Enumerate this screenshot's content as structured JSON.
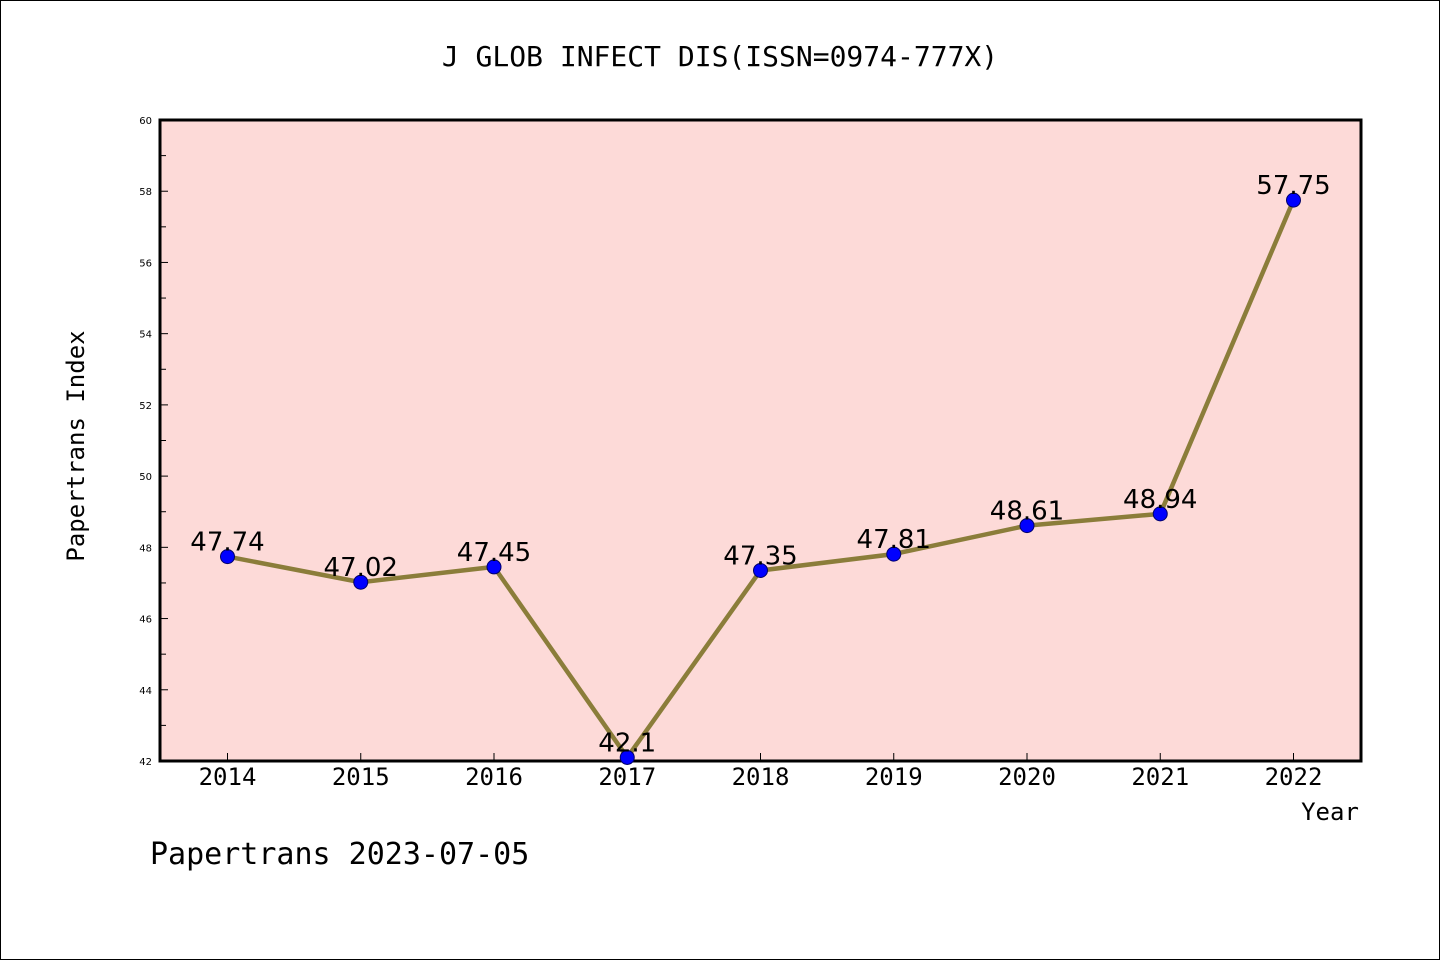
{
  "chart_data": {
    "type": "line",
    "title": "J GLOB INFECT DIS(ISSN=0974-777X)",
    "xlabel": "Year",
    "ylabel": "Papertrans Index",
    "categories": [
      "2014",
      "2015",
      "2016",
      "2017",
      "2018",
      "2019",
      "2020",
      "2021",
      "2022"
    ],
    "series": [
      {
        "values": [
          47.74,
          47.02,
          47.45,
          42.1,
          47.35,
          47.81,
          48.61,
          48.94,
          57.75
        ],
        "labels": [
          "47.74",
          "47.02",
          "47.45",
          "42.1",
          "47.35",
          "47.81",
          "48.61",
          "48.94",
          "57.75"
        ]
      }
    ],
    "ylim": [
      42,
      60
    ],
    "yticks": [
      "42",
      "44",
      "46",
      "48",
      "50",
      "52",
      "54",
      "56",
      "58",
      "60"
    ],
    "grid": false,
    "colors": {
      "plot_background": "#FDDAD8",
      "line": "#8B7D3A",
      "marker": "#0000FF"
    }
  },
  "footer": {
    "text": "Papertrans 2023-07-05"
  }
}
